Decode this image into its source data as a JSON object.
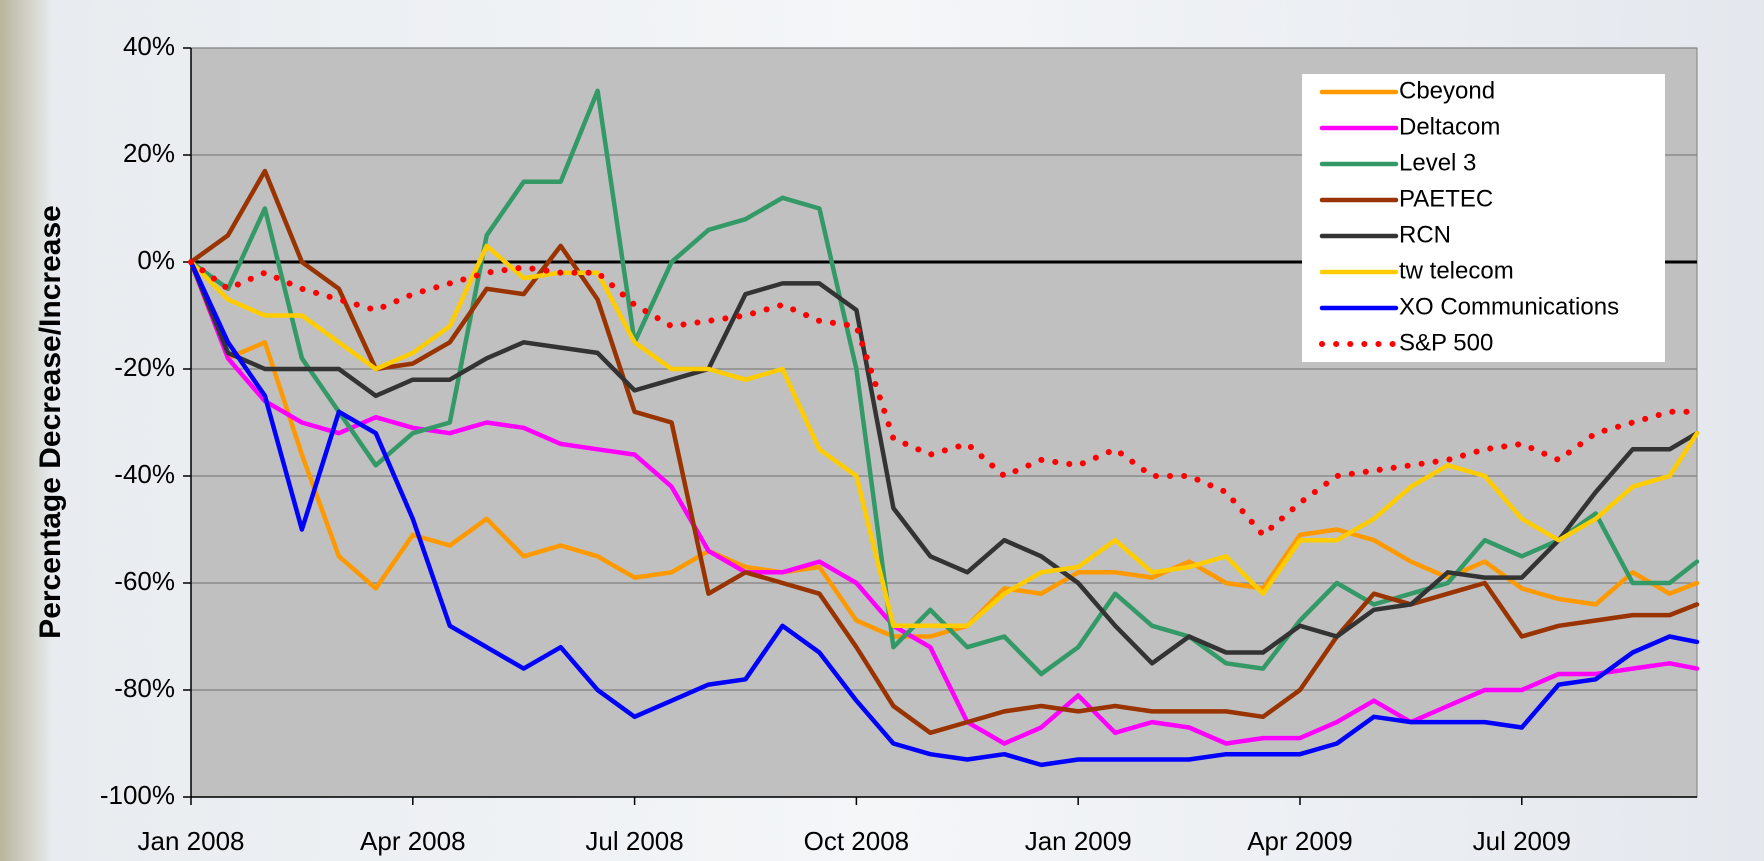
{
  "chart_data": {
    "type": "line",
    "ylabel": "Percentage Decrease/Increase",
    "x": [
      0,
      0.5,
      1,
      1.5,
      2,
      2.5,
      3,
      3.5,
      4,
      4.5,
      5,
      5.5,
      6,
      6.5,
      7,
      7.5,
      8,
      8.5,
      9,
      9.5,
      10,
      10.5,
      11,
      11.5,
      12,
      12.5,
      13,
      13.5,
      14,
      14.5,
      15,
      15.5,
      16,
      16.5,
      17,
      17.5,
      18,
      18.5,
      19,
      19.5,
      20,
      20.37
    ],
    "xlim": [
      0,
      20.37
    ],
    "xticks": [
      {
        "value": 0,
        "label": "Jan 2008"
      },
      {
        "value": 3,
        "label": "Apr 2008"
      },
      {
        "value": 6,
        "label": "Jul 2008"
      },
      {
        "value": 9,
        "label": "Oct 2008"
      },
      {
        "value": 12,
        "label": "Jan 2009"
      },
      {
        "value": 15,
        "label": "Apr 2009"
      },
      {
        "value": 18,
        "label": "Jul 2009"
      }
    ],
    "ylim": [
      -100,
      40
    ],
    "yticks": [
      {
        "value": -100,
        "label": "-100%"
      },
      {
        "value": -80,
        "label": "-80%"
      },
      {
        "value": -60,
        "label": "-60%"
      },
      {
        "value": -40,
        "label": "-40%"
      },
      {
        "value": -20,
        "label": "-20%"
      },
      {
        "value": 0,
        "label": "0%"
      },
      {
        "value": 20,
        "label": "20%"
      },
      {
        "value": 40,
        "label": "40%"
      }
    ],
    "grid": true,
    "legend": "upper right",
    "series": [
      {
        "name": "Cbeyond",
        "color": "#ff9900",
        "values": [
          0,
          -18,
          -15,
          -36,
          -55,
          -61,
          -51,
          -53,
          -48,
          -55,
          -53,
          -55,
          -59,
          -58,
          -54,
          -57,
          -58,
          -57,
          -67,
          -70,
          -70,
          -68,
          -61,
          -62,
          -58,
          -58,
          -59,
          -56,
          -60,
          -61,
          -51,
          -50,
          -52,
          -56,
          -59,
          -56,
          -61,
          -63,
          -64,
          -58,
          -62,
          -60
        ]
      },
      {
        "name": "Deltacom",
        "color": "#ff00ff",
        "values": [
          0,
          -18,
          -26,
          -30,
          -32,
          -29,
          -31,
          -32,
          -30,
          -31,
          -34,
          -35,
          -36,
          -42,
          -54,
          -58,
          -58,
          -56,
          -60,
          -68,
          -72,
          -86,
          -90,
          -87,
          -81,
          -88,
          -86,
          -87,
          -90,
          -89,
          -89,
          -86,
          -82,
          -86,
          -83,
          -80,
          -80,
          -77,
          -77,
          -76,
          -75,
          -76
        ]
      },
      {
        "name": "Level 3",
        "color": "#339966",
        "values": [
          0,
          -5,
          10,
          -18,
          -28,
          -38,
          -32,
          -30,
          5,
          15,
          15,
          32,
          -15,
          0,
          6,
          8,
          12,
          10,
          -20,
          -72,
          -65,
          -72,
          -70,
          -77,
          -72,
          -62,
          -68,
          -70,
          -75,
          -76,
          -67,
          -60,
          -64,
          -62,
          -60,
          -52,
          -55,
          -52,
          -47,
          -60,
          -60,
          -56
        ]
      },
      {
        "name": "PAETEC",
        "color": "#993300",
        "values": [
          0,
          5,
          17,
          0,
          -5,
          -20,
          -19,
          -15,
          -5,
          -6,
          3,
          -7,
          -28,
          -30,
          -62,
          -58,
          -60,
          -62,
          -72,
          -83,
          -88,
          -86,
          -84,
          -83,
          -84,
          -83,
          -84,
          -84,
          -84,
          -85,
          -80,
          -70,
          -62,
          -64,
          -62,
          -60,
          -70,
          -68,
          -67,
          -66,
          -66,
          -64
        ]
      },
      {
        "name": "RCN",
        "color": "#333333",
        "values": [
          0,
          -17,
          -20,
          -20,
          -20,
          -25,
          -22,
          -22,
          -18,
          -15,
          -16,
          -17,
          -24,
          -22,
          -20,
          -6,
          -4,
          -4,
          -9,
          -46,
          -55,
          -58,
          -52,
          -55,
          -60,
          -68,
          -75,
          -70,
          -73,
          -73,
          -68,
          -70,
          -65,
          -64,
          -58,
          -59,
          -59,
          -52,
          -43,
          -35,
          -35,
          -32
        ]
      },
      {
        "name": "tw telecom",
        "color": "#ffcc00",
        "values": [
          0,
          -7,
          -10,
          -10,
          -15,
          -20,
          -17,
          -12,
          3,
          -3,
          -2,
          -2,
          -15,
          -20,
          -20,
          -22,
          -20,
          -35,
          -40,
          -68,
          -68,
          -68,
          -62,
          -58,
          -57,
          -52,
          -58,
          -57,
          -55,
          -62,
          -52,
          -52,
          -48,
          -42,
          -38,
          -40,
          -48,
          -52,
          -48,
          -42,
          -40,
          -32
        ]
      },
      {
        "name": "XO Communications",
        "color": "#0000ff",
        "values": [
          0,
          -15,
          -25,
          -50,
          -28,
          -32,
          -48,
          -68,
          -72,
          -76,
          -72,
          -80,
          -85,
          -82,
          -79,
          -78,
          -68,
          -73,
          -82,
          -90,
          -92,
          -93,
          -92,
          -94,
          -93,
          -93,
          -93,
          -93,
          -92,
          -92,
          -92,
          -90,
          -85,
          -86,
          -86,
          -86,
          -87,
          -79,
          -78,
          -73,
          -70,
          -71
        ]
      },
      {
        "name": "S&P 500",
        "color": "#ff0000",
        "line_style": "dotted",
        "values": [
          0,
          -5,
          -2,
          -5,
          -7,
          -9,
          -6,
          -4,
          -2,
          -1,
          -2,
          -2,
          -8,
          -12,
          -11,
          -10,
          -8,
          -11,
          -12,
          -33,
          -36,
          -34,
          -40,
          -37,
          -38,
          -35,
          -40,
          -40,
          -43,
          -51,
          -45,
          -40,
          -39,
          -38,
          -37,
          -35,
          -34,
          -37,
          -32,
          -30,
          -28,
          -28
        ]
      }
    ]
  }
}
